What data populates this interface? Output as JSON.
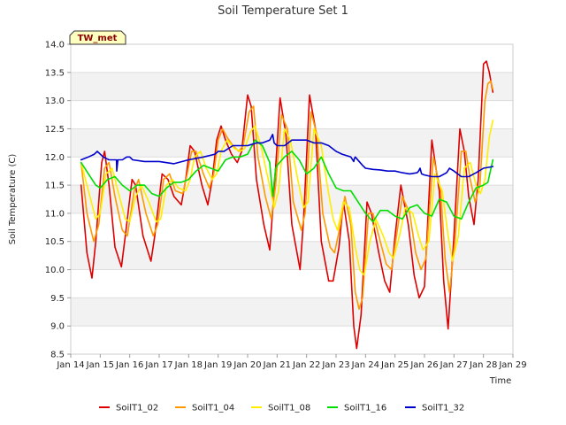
{
  "chart_data": {
    "type": "line",
    "title": "Soil Temperature Set 1",
    "xlabel": "Time",
    "ylabel": "Soil Temperature (C)",
    "station_badge": "TW_met",
    "ylim": [
      8.5,
      14.0
    ],
    "yticks": [
      8.5,
      9.0,
      9.5,
      10.0,
      10.5,
      11.0,
      11.5,
      12.0,
      12.5,
      13.0,
      13.5,
      14.0
    ],
    "ytick_labels": [
      "8.5",
      "9.0",
      "9.5",
      "10.0",
      "10.5",
      "11.0",
      "11.5",
      "12.0",
      "12.5",
      "13.0",
      "13.5",
      "14.0"
    ],
    "xlim": [
      14,
      29
    ],
    "xticks": [
      14,
      15,
      16,
      17,
      18,
      19,
      20,
      21,
      22,
      23,
      24,
      25,
      26,
      27,
      28,
      29
    ],
    "xtick_labels": [
      "Jan 14",
      "Jan 15",
      "Jan 16",
      "Jan 17",
      "Jan 18",
      "Jan 19",
      "Jan 20",
      "Jan 21",
      "Jan 22",
      "Jan 23",
      "Jan 24",
      "Jan 25",
      "Jan 26",
      "Jan 27",
      "Jan 28",
      "Jan 29"
    ],
    "grid": true,
    "legend_position": "bottom",
    "series": [
      {
        "name": "SoilT1_02",
        "color": "#dd0000",
        "x": [
          14.35,
          14.55,
          14.72,
          14.85,
          15.05,
          15.15,
          15.3,
          15.5,
          15.72,
          15.85,
          16.08,
          16.2,
          16.45,
          16.72,
          16.85,
          17.1,
          17.3,
          17.5,
          17.75,
          17.9,
          18.05,
          18.2,
          18.45,
          18.65,
          18.8,
          18.95,
          19.1,
          19.25,
          19.45,
          19.65,
          19.8,
          20.0,
          20.12,
          20.3,
          20.55,
          20.75,
          20.9,
          21.1,
          21.3,
          21.5,
          21.78,
          21.9,
          22.1,
          22.3,
          22.5,
          22.75,
          22.9,
          23.1,
          23.25,
          23.45,
          23.6,
          23.7,
          23.85,
          24.05,
          24.2,
          24.45,
          24.65,
          24.82,
          25.0,
          25.2,
          25.45,
          25.65,
          25.82,
          26.0,
          26.25,
          26.5,
          26.65,
          26.8,
          27.0,
          27.2,
          27.35,
          27.5,
          27.68,
          27.82,
          28.0,
          28.1,
          28.2,
          28.32
        ],
        "values": [
          11.5,
          10.3,
          9.85,
          10.5,
          11.9,
          12.1,
          11.5,
          10.4,
          10.05,
          10.6,
          11.6,
          11.5,
          10.6,
          10.15,
          10.6,
          11.7,
          11.6,
          11.3,
          11.15,
          11.6,
          12.2,
          12.1,
          11.5,
          11.15,
          11.6,
          12.3,
          12.55,
          12.3,
          12.05,
          11.9,
          12.1,
          13.1,
          12.9,
          11.6,
          10.8,
          10.35,
          11.4,
          13.05,
          12.4,
          10.8,
          10.0,
          10.9,
          13.1,
          12.5,
          10.5,
          9.8,
          9.8,
          10.4,
          11.2,
          10.5,
          9.0,
          8.6,
          9.2,
          11.2,
          11.0,
          10.3,
          9.8,
          9.6,
          10.6,
          11.5,
          10.8,
          9.9,
          9.5,
          9.7,
          12.3,
          11.4,
          9.8,
          8.95,
          10.6,
          12.5,
          12.1,
          11.3,
          10.8,
          11.6,
          13.65,
          13.7,
          13.5,
          13.15
        ]
      },
      {
        "name": "SoilT1_04",
        "color": "#ff9900",
        "x": [
          14.35,
          14.55,
          14.78,
          14.95,
          15.15,
          15.3,
          15.5,
          15.75,
          15.92,
          16.15,
          16.3,
          16.55,
          16.8,
          16.95,
          17.15,
          17.35,
          17.55,
          17.8,
          17.95,
          18.1,
          18.25,
          18.5,
          18.7,
          18.85,
          19.0,
          19.15,
          19.3,
          19.5,
          19.7,
          19.85,
          20.05,
          20.2,
          20.35,
          20.6,
          20.8,
          20.95,
          21.15,
          21.35,
          21.55,
          21.82,
          21.95,
          22.15,
          22.35,
          22.55,
          22.8,
          22.95,
          23.15,
          23.3,
          23.5,
          23.65,
          23.78,
          23.9,
          24.1,
          24.25,
          24.5,
          24.7,
          24.88,
          25.05,
          25.25,
          25.5,
          25.7,
          25.88,
          26.05,
          26.3,
          26.55,
          26.7,
          26.85,
          27.05,
          27.25,
          27.4,
          27.55,
          27.72,
          27.88,
          28.05,
          28.15,
          28.25,
          28.32
        ],
        "values": [
          11.9,
          11.0,
          10.5,
          10.8,
          11.8,
          11.9,
          11.3,
          10.7,
          10.6,
          11.4,
          11.6,
          11.0,
          10.6,
          10.8,
          11.6,
          11.7,
          11.4,
          11.35,
          11.7,
          12.1,
          12.1,
          11.7,
          11.45,
          11.7,
          12.3,
          12.5,
          12.35,
          12.2,
          12.1,
          12.2,
          12.8,
          12.9,
          12.0,
          11.3,
          10.9,
          11.5,
          12.75,
          12.5,
          11.2,
          10.7,
          11.0,
          12.8,
          12.4,
          11.0,
          10.4,
          10.3,
          10.8,
          11.3,
          10.8,
          9.6,
          9.3,
          9.5,
          11.0,
          11.0,
          10.5,
          10.1,
          10.0,
          10.6,
          11.3,
          11.0,
          10.3,
          10.0,
          10.2,
          12.0,
          11.4,
          10.2,
          9.6,
          10.6,
          12.1,
          12.1,
          11.6,
          11.2,
          11.5,
          13.0,
          13.3,
          13.35,
          13.2
        ]
      },
      {
        "name": "SoilT1_08",
        "color": "#ffee00",
        "x": [
          14.35,
          14.6,
          14.85,
          15.0,
          15.2,
          15.4,
          15.6,
          15.85,
          16.0,
          16.2,
          16.4,
          16.65,
          16.9,
          17.05,
          17.25,
          17.45,
          17.65,
          17.9,
          18.05,
          18.2,
          18.4,
          18.6,
          18.8,
          18.95,
          19.1,
          19.3,
          19.55,
          19.75,
          19.9,
          20.1,
          20.25,
          20.45,
          20.7,
          20.9,
          21.05,
          21.25,
          21.45,
          21.7,
          21.9,
          22.05,
          22.25,
          22.5,
          22.7,
          22.9,
          23.05,
          23.25,
          23.45,
          23.65,
          23.8,
          23.95,
          24.15,
          24.35,
          24.6,
          24.8,
          24.95,
          25.15,
          25.35,
          25.6,
          25.8,
          25.95,
          26.15,
          26.35,
          26.6,
          26.8,
          26.95,
          27.15,
          27.35,
          27.55,
          27.75,
          27.9,
          28.05,
          28.2,
          28.32
        ],
        "values": [
          11.9,
          11.4,
          10.9,
          11.0,
          11.7,
          11.8,
          11.4,
          10.9,
          10.85,
          11.3,
          11.5,
          11.2,
          10.85,
          10.9,
          11.5,
          11.6,
          11.45,
          11.4,
          11.6,
          12.0,
          12.1,
          11.8,
          11.6,
          11.7,
          12.1,
          12.3,
          12.15,
          12.1,
          12.15,
          12.45,
          12.55,
          12.2,
          11.6,
          11.1,
          11.4,
          12.5,
          12.3,
          11.6,
          11.1,
          11.2,
          12.5,
          12.2,
          11.5,
          10.9,
          10.7,
          11.2,
          11.1,
          10.4,
          10.0,
          9.9,
          10.5,
          10.9,
          10.6,
          10.3,
          10.2,
          10.6,
          11.1,
          11.0,
          10.6,
          10.35,
          10.5,
          11.7,
          11.4,
          10.6,
          10.15,
          10.6,
          11.8,
          11.9,
          11.5,
          11.35,
          11.6,
          12.35,
          12.65
        ]
      },
      {
        "name": "SoilT1_16",
        "color": "#00dd00",
        "x": [
          14.35,
          14.6,
          14.85,
          15.0,
          15.25,
          15.5,
          15.75,
          16.0,
          16.25,
          16.5,
          16.75,
          17.0,
          17.25,
          17.5,
          17.75,
          18.0,
          18.25,
          18.5,
          18.75,
          19.0,
          19.25,
          19.5,
          19.75,
          20.0,
          20.25,
          20.5,
          20.75,
          20.85,
          20.95,
          21.0,
          21.25,
          21.5,
          21.75,
          22.0,
          22.25,
          22.5,
          22.75,
          23.0,
          23.25,
          23.5,
          23.75,
          24.0,
          24.25,
          24.5,
          24.75,
          25.0,
          25.25,
          25.5,
          25.75,
          26.0,
          26.25,
          26.5,
          26.75,
          27.0,
          27.25,
          27.5,
          27.75,
          28.0,
          28.15,
          28.32
        ],
        "values": [
          11.9,
          11.7,
          11.5,
          11.45,
          11.6,
          11.65,
          11.5,
          11.4,
          11.5,
          11.5,
          11.35,
          11.3,
          11.45,
          11.55,
          11.55,
          11.6,
          11.75,
          11.85,
          11.8,
          11.75,
          11.95,
          12.0,
          12.0,
          12.05,
          12.3,
          12.2,
          11.9,
          11.3,
          11.8,
          11.85,
          12.0,
          12.1,
          11.95,
          11.7,
          11.8,
          12.0,
          11.7,
          11.45,
          11.4,
          11.4,
          11.2,
          11.0,
          10.85,
          11.05,
          11.05,
          10.95,
          10.9,
          11.1,
          11.15,
          11.0,
          10.95,
          11.25,
          11.2,
          10.95,
          10.9,
          11.2,
          11.45,
          11.5,
          11.55,
          11.95
        ]
      },
      {
        "name": "SoilT1_32",
        "color": "#0000cc",
        "x": [
          14.35,
          14.6,
          14.8,
          14.9,
          15.0,
          15.1,
          15.3,
          15.5,
          15.55,
          15.56,
          15.6,
          15.75,
          15.9,
          16.0,
          16.1,
          16.5,
          17.0,
          17.5,
          18.0,
          18.5,
          18.9,
          19.0,
          19.2,
          19.5,
          19.8,
          20.0,
          20.3,
          20.5,
          20.75,
          20.8,
          20.85,
          20.9,
          21.0,
          21.25,
          21.5,
          21.75,
          22.0,
          22.25,
          22.5,
          22.75,
          23.0,
          23.2,
          23.5,
          23.6,
          23.62,
          23.65,
          23.9,
          24.0,
          24.25,
          24.5,
          24.75,
          25.0,
          25.25,
          25.5,
          25.75,
          25.8,
          25.85,
          25.9,
          26.0,
          26.25,
          26.5,
          26.75,
          26.85,
          27.0,
          27.25,
          27.5,
          27.75,
          28.0,
          28.32
        ],
        "values": [
          11.95,
          12.0,
          12.05,
          12.1,
          12.05,
          12.0,
          11.95,
          11.95,
          11.95,
          11.75,
          11.95,
          11.95,
          12.0,
          12.0,
          11.95,
          11.92,
          11.92,
          11.88,
          11.95,
          12.0,
          12.05,
          12.1,
          12.1,
          12.2,
          12.2,
          12.2,
          12.25,
          12.25,
          12.3,
          12.35,
          12.4,
          12.25,
          12.2,
          12.2,
          12.3,
          12.3,
          12.3,
          12.25,
          12.25,
          12.2,
          12.1,
          12.05,
          12.0,
          11.92,
          11.97,
          12.0,
          11.85,
          11.8,
          11.78,
          11.77,
          11.75,
          11.75,
          11.72,
          11.7,
          11.72,
          11.75,
          11.8,
          11.7,
          11.68,
          11.65,
          11.65,
          11.72,
          11.8,
          11.75,
          11.65,
          11.65,
          11.72,
          11.8,
          11.83
        ]
      }
    ]
  }
}
